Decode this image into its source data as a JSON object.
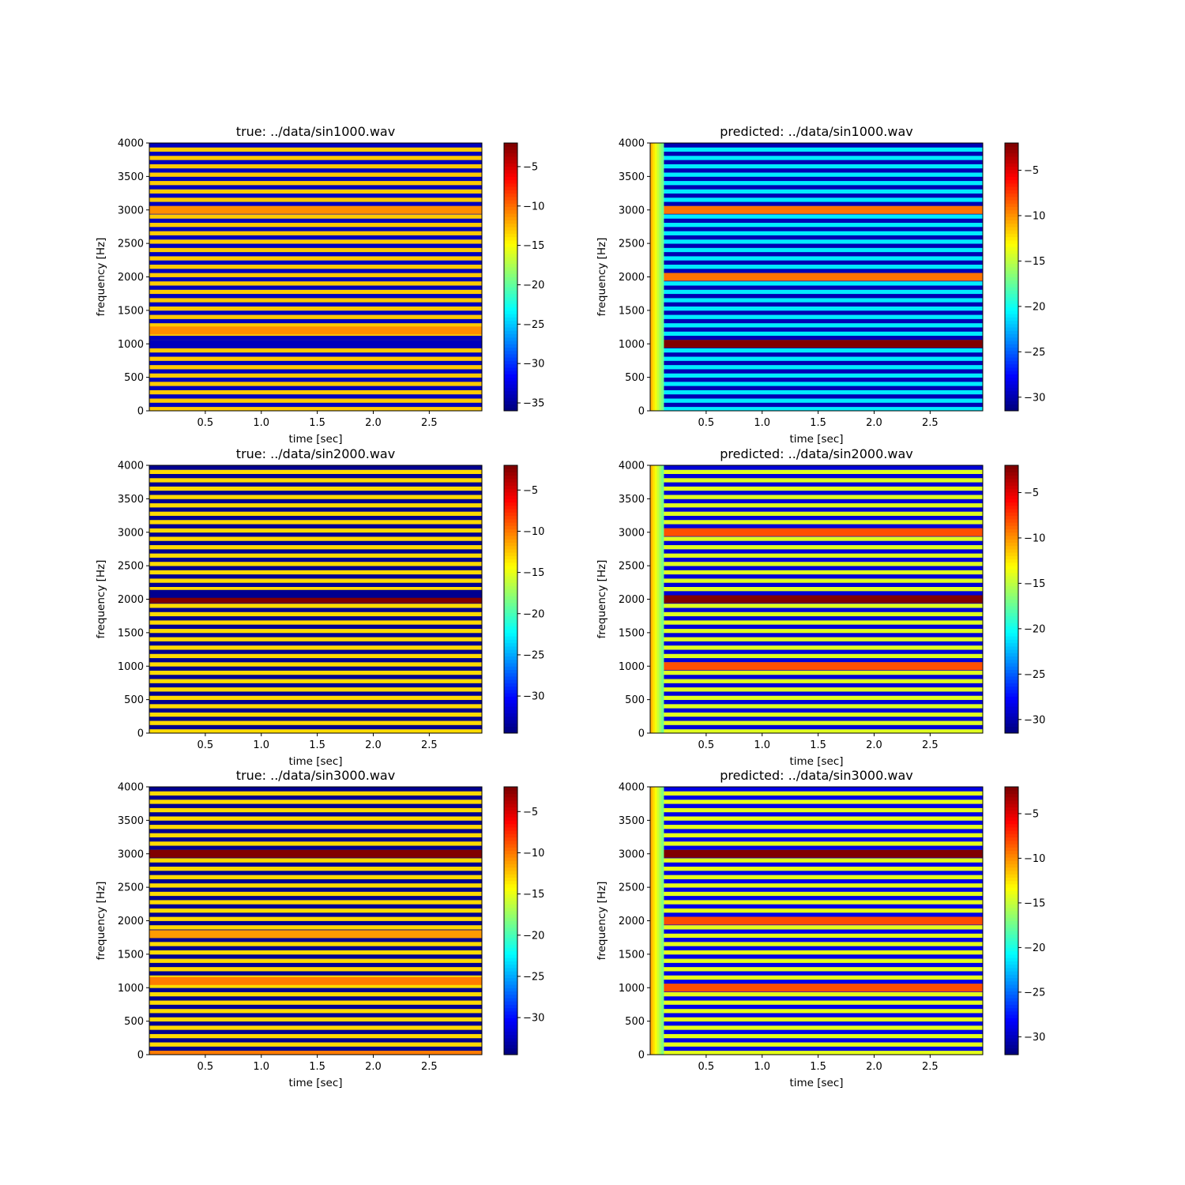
{
  "chart_data": [
    {
      "type": "heatmap",
      "panel": "true",
      "title": "true: ../data/sin1000.wav",
      "xlabel": "time [sec]",
      "ylabel": "frequency [Hz]",
      "xlim": [
        0.0,
        2.97
      ],
      "ylim": [
        0,
        4000
      ],
      "xticks": [
        0.5,
        1.0,
        1.5,
        2.0,
        2.5
      ],
      "xtick_labels": [
        "0.5",
        "1.0",
        "1.5",
        "2.0",
        "2.5"
      ],
      "yticks": [
        0,
        500,
        1000,
        1500,
        2000,
        2500,
        3000,
        3500,
        4000
      ],
      "ytick_labels": [
        "0",
        "500",
        "1000",
        "1500",
        "2000",
        "2500",
        "3000",
        "3500",
        "4000"
      ],
      "colorbar": {
        "range": [
          -36,
          -2
        ],
        "ticks": [
          -5,
          -10,
          -15,
          -20,
          -25,
          -30,
          -35
        ],
        "tick_labels": [
          "−5",
          "−10",
          "−15",
          "−20",
          "−25",
          "−30",
          "−35"
        ]
      },
      "colormap": "jet",
      "bands": [
        {
          "freq_hz": 1000,
          "level_db": -34
        },
        {
          "freq_hz": 3000,
          "level_db": -11
        },
        {
          "freq_hz": 1200,
          "level_db": -11
        }
      ],
      "pattern": "alternating horizontal stripes about -13 dB and -34 dB every ~62.5 Hz"
    },
    {
      "type": "heatmap",
      "panel": "predicted",
      "title": "predicted: ../data/sin1000.wav",
      "xlabel": "time [sec]",
      "ylabel": "frequency [Hz]",
      "xlim": [
        0.0,
        2.97
      ],
      "ylim": [
        0,
        4000
      ],
      "xticks": [
        0.5,
        1.0,
        1.5,
        2.0,
        2.5
      ],
      "xtick_labels": [
        "0.5",
        "1.0",
        "1.5",
        "2.0",
        "2.5"
      ],
      "yticks": [
        0,
        500,
        1000,
        1500,
        2000,
        2500,
        3000,
        3500,
        4000
      ],
      "ytick_labels": [
        "0",
        "500",
        "1000",
        "1500",
        "2000",
        "2500",
        "3000",
        "3500",
        "4000"
      ],
      "colorbar": {
        "range": [
          -31.5,
          -2
        ],
        "ticks": [
          -5,
          -10,
          -15,
          -20,
          -25,
          -30
        ],
        "tick_labels": [
          "−5",
          "−10",
          "−15",
          "−20",
          "−25",
          "−30"
        ]
      },
      "colormap": "jet",
      "bands": [
        {
          "freq_hz": 1000,
          "level_db": -2
        },
        {
          "freq_hz": 2000,
          "level_db": -9
        },
        {
          "freq_hz": 3000,
          "level_db": -9
        }
      ],
      "pattern": "alternating stripes about -21 dB and -30 dB; bright onset column for t < 0.12 s"
    },
    {
      "type": "heatmap",
      "panel": "true",
      "title": "true: ../data/sin2000.wav",
      "xlabel": "time [sec]",
      "ylabel": "frequency [Hz]",
      "xlim": [
        0.0,
        2.97
      ],
      "ylim": [
        0,
        4000
      ],
      "xticks": [
        0.5,
        1.0,
        1.5,
        2.0,
        2.5
      ],
      "xtick_labels": [
        "0.5",
        "1.0",
        "1.5",
        "2.0",
        "2.5"
      ],
      "yticks": [
        0,
        500,
        1000,
        1500,
        2000,
        2500,
        3000,
        3500,
        4000
      ],
      "ytick_labels": [
        "0",
        "500",
        "1000",
        "1500",
        "2000",
        "2500",
        "3000",
        "3500",
        "4000"
      ],
      "colorbar": {
        "range": [
          -34.5,
          -2
        ],
        "ticks": [
          -5,
          -10,
          -15,
          -20,
          -25,
          -30
        ],
        "tick_labels": [
          "−5",
          "−10",
          "−15",
          "−20",
          "−25",
          "−30"
        ]
      },
      "colormap": "jet",
      "bands": [
        {
          "freq_hz": 2000,
          "level_db": -2
        },
        {
          "freq_hz": 2080,
          "level_db": -34
        }
      ],
      "pattern": "alternating horizontal stripes about -13 dB and -34 dB every ~62.5 Hz"
    },
    {
      "type": "heatmap",
      "panel": "predicted",
      "title": "predicted: ../data/sin2000.wav",
      "xlabel": "time [sec]",
      "ylabel": "frequency [Hz]",
      "xlim": [
        0.0,
        2.97
      ],
      "ylim": [
        0,
        4000
      ],
      "xticks": [
        0.5,
        1.0,
        1.5,
        2.0,
        2.5
      ],
      "xtick_labels": [
        "0.5",
        "1.0",
        "1.5",
        "2.0",
        "2.5"
      ],
      "yticks": [
        0,
        500,
        1000,
        1500,
        2000,
        2500,
        3000,
        3500,
        4000
      ],
      "ytick_labels": [
        "0",
        "500",
        "1000",
        "1500",
        "2000",
        "2500",
        "3000",
        "3500",
        "4000"
      ],
      "colorbar": {
        "range": [
          -31.5,
          -2
        ],
        "ticks": [
          -5,
          -10,
          -15,
          -20,
          -25,
          -30
        ],
        "tick_labels": [
          "−5",
          "−10",
          "−15",
          "−20",
          "−25",
          "−30"
        ]
      },
      "colormap": "jet",
      "bands": [
        {
          "freq_hz": 2000,
          "level_db": -2
        },
        {
          "freq_hz": 1000,
          "level_db": -8
        },
        {
          "freq_hz": 3000,
          "level_db": -8
        }
      ],
      "pattern": "alternating stripes about -14 dB and -29 dB; bright onset column for t < 0.12 s"
    },
    {
      "type": "heatmap",
      "panel": "true",
      "title": "true: ../data/sin3000.wav",
      "xlabel": "time [sec]",
      "ylabel": "frequency [Hz]",
      "xlim": [
        0.0,
        2.97
      ],
      "ylim": [
        0,
        4000
      ],
      "xticks": [
        0.5,
        1.0,
        1.5,
        2.0,
        2.5
      ],
      "xtick_labels": [
        "0.5",
        "1.0",
        "1.5",
        "2.0",
        "2.5"
      ],
      "yticks": [
        0,
        500,
        1000,
        1500,
        2000,
        2500,
        3000,
        3500,
        4000
      ],
      "ytick_labels": [
        "0",
        "500",
        "1000",
        "1500",
        "2000",
        "2500",
        "3000",
        "3500",
        "4000"
      ],
      "colorbar": {
        "range": [
          -34.5,
          -2
        ],
        "ticks": [
          -5,
          -10,
          -15,
          -20,
          -25,
          -30
        ],
        "tick_labels": [
          "−5",
          "−10",
          "−15",
          "−20",
          "−25",
          "−30"
        ]
      },
      "colormap": "jet",
      "bands": [
        {
          "freq_hz": 3000,
          "level_db": -2
        },
        {
          "freq_hz": 1100,
          "level_db": -10
        },
        {
          "freq_hz": 1800,
          "level_db": -11
        },
        {
          "freq_hz": 0,
          "level_db": -10
        }
      ],
      "pattern": "alternating horizontal stripes about -13 dB and -34 dB every ~62.5 Hz"
    },
    {
      "type": "heatmap",
      "panel": "predicted",
      "title": "predicted: ../data/sin3000.wav",
      "xlabel": "time [sec]",
      "ylabel": "frequency [Hz]",
      "xlim": [
        0.0,
        2.97
      ],
      "ylim": [
        0,
        4000
      ],
      "xticks": [
        0.5,
        1.0,
        1.5,
        2.0,
        2.5
      ],
      "xtick_labels": [
        "0.5",
        "1.0",
        "1.5",
        "2.0",
        "2.5"
      ],
      "yticks": [
        0,
        500,
        1000,
        1500,
        2000,
        2500,
        3000,
        3500,
        4000
      ],
      "ytick_labels": [
        "0",
        "500",
        "1000",
        "1500",
        "2000",
        "2500",
        "3000",
        "3500",
        "4000"
      ],
      "colorbar": {
        "range": [
          -32,
          -2
        ],
        "ticks": [
          -5,
          -10,
          -15,
          -20,
          -25,
          -30
        ],
        "tick_labels": [
          "−5",
          "−10",
          "−15",
          "−20",
          "−25",
          "−30"
        ]
      },
      "colormap": "jet",
      "bands": [
        {
          "freq_hz": 3000,
          "level_db": -2
        },
        {
          "freq_hz": 1000,
          "level_db": -8
        },
        {
          "freq_hz": 2000,
          "level_db": -8
        }
      ],
      "pattern": "alternating stripes about -14 dB and -29 dB; bright onset column for t < 0.12 s"
    }
  ]
}
